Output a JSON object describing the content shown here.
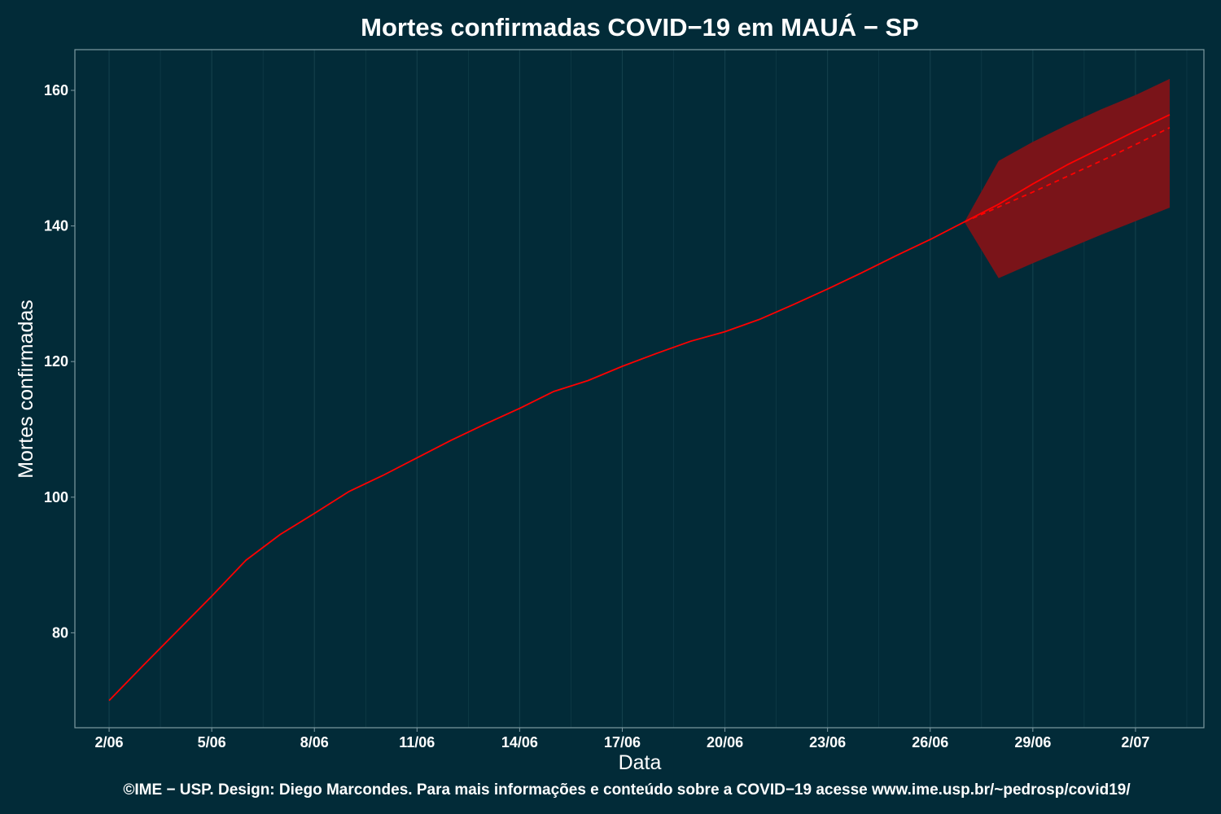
{
  "chart_data": {
    "type": "line",
    "title": "Mortes confirmadas COVID−19 em MAUÁ − SP",
    "xlabel": "Data",
    "ylabel": "Mortes confirmadas",
    "caption": "©IME − USP. Design: Diego Marcondes. Para mais informações e conteúdo sobre a COVID−19 acesse www.ime.usp.br/~pedrosp/covid19/",
    "x_ticks": [
      "2/06",
      "5/06",
      "8/06",
      "11/06",
      "14/06",
      "17/06",
      "20/06",
      "23/06",
      "26/06",
      "29/06",
      "2/07"
    ],
    "y_ticks": [
      80,
      100,
      120,
      140,
      160
    ],
    "xlim": [
      "2020-06-01",
      "2020-07-04"
    ],
    "ylim": [
      66,
      166
    ],
    "grid": true,
    "legend": "none",
    "series": [
      {
        "style": "solid",
        "x": [
          "2020-06-02",
          "2020-06-03",
          "2020-06-04",
          "2020-06-05",
          "2020-06-06",
          "2020-06-07",
          "2020-06-08",
          "2020-06-09",
          "2020-06-10",
          "2020-06-11",
          "2020-06-12",
          "2020-06-13",
          "2020-06-14",
          "2020-06-15",
          "2020-06-16",
          "2020-06-17",
          "2020-06-18",
          "2020-06-19",
          "2020-06-20",
          "2020-06-21",
          "2020-06-22",
          "2020-06-23",
          "2020-06-24",
          "2020-06-25",
          "2020-06-26",
          "2020-06-27",
          "2020-06-28",
          "2020-06-29",
          "2020-06-30",
          "2020-07-01",
          "2020-07-02",
          "2020-07-03"
        ],
        "values": [
          70,
          75.2,
          80.3,
          85.4,
          90.7,
          94.5,
          97.6,
          100.8,
          103.2,
          105.8,
          108.4,
          110.8,
          113.1,
          115.6,
          117.2,
          119.3,
          121.2,
          123.0,
          124.4,
          126.2,
          128.4,
          130.7,
          133.1,
          135.6,
          138.0,
          140.6,
          143.2,
          146.2,
          149.0,
          151.5,
          154.0,
          156.4
        ]
      },
      {
        "style": "dashed",
        "x": [
          "2020-06-27",
          "2020-06-28",
          "2020-06-29",
          "2020-06-30",
          "2020-07-01",
          "2020-07-02",
          "2020-07-03"
        ],
        "values": [
          140.6,
          142.8,
          145.0,
          147.3,
          149.6,
          152.0,
          154.5
        ]
      }
    ],
    "band": {
      "x": [
        "2020-06-27",
        "2020-06-28",
        "2020-06-29",
        "2020-06-30",
        "2020-07-01",
        "2020-07-02",
        "2020-07-03"
      ],
      "lower": [
        140.6,
        132.3,
        134.5,
        136.6,
        138.7,
        140.7,
        142.7
      ],
      "upper": [
        140.6,
        149.6,
        152.4,
        154.9,
        157.2,
        159.3,
        161.7
      ]
    },
    "colors": {
      "background": "#022b38",
      "line": "#ff0000",
      "band": "#7a1419",
      "grid": "#14404c",
      "border": "#7f9aa2",
      "text": "#ffffff"
    }
  }
}
